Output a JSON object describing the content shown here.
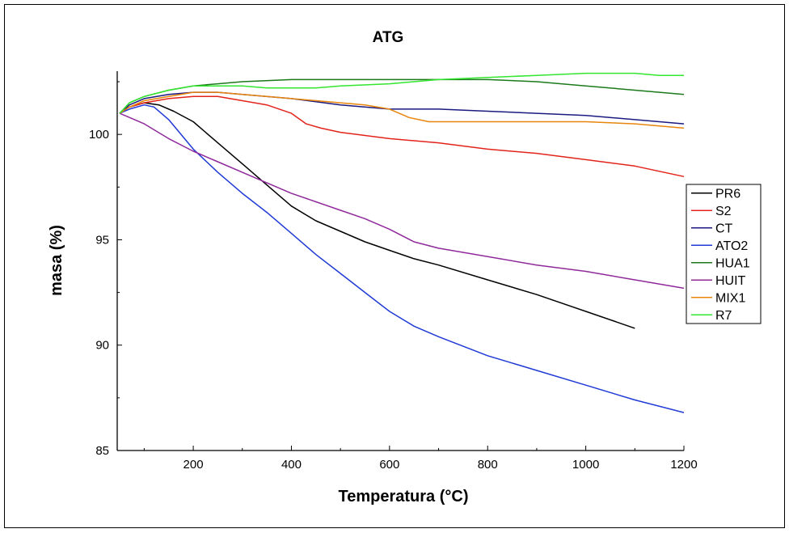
{
  "chart_data": {
    "type": "line",
    "title": "ATG",
    "xlabel": "Temperatura (°C)",
    "ylabel": "masa (%)",
    "xlim": [
      45,
      1200
    ],
    "ylim": [
      85,
      103
    ],
    "xticks": [
      200,
      400,
      600,
      800,
      1000,
      1200
    ],
    "yticks": [
      85,
      90,
      95,
      100
    ],
    "xtick_labels": [
      "200",
      "400",
      "600",
      "800",
      "1000",
      "1200"
    ],
    "ytick_labels": [
      "85",
      "90",
      "95",
      "100"
    ],
    "grid": false,
    "legend_position": "right",
    "series": [
      {
        "name": "PR6",
        "color": "#000000",
        "x": [
          50,
          70,
          100,
          130,
          160,
          200,
          250,
          300,
          350,
          400,
          450,
          500,
          550,
          600,
          650,
          700,
          800,
          900,
          1000,
          1100
        ],
        "y": [
          101.0,
          101.3,
          101.5,
          101.4,
          101.1,
          100.6,
          99.6,
          98.6,
          97.6,
          96.6,
          95.9,
          95.4,
          94.9,
          94.5,
          94.1,
          93.8,
          93.1,
          92.4,
          91.6,
          90.8
        ]
      },
      {
        "name": "S2",
        "color": "#e3241b",
        "x": [
          50,
          70,
          100,
          150,
          200,
          250,
          300,
          350,
          400,
          430,
          460,
          500,
          600,
          700,
          800,
          900,
          1000,
          1100,
          1200
        ],
        "y": [
          101.0,
          101.3,
          101.5,
          101.7,
          101.8,
          101.8,
          101.6,
          101.4,
          101.0,
          100.5,
          100.3,
          100.1,
          99.8,
          99.6,
          99.3,
          99.1,
          98.8,
          98.5,
          98.0
        ]
      },
      {
        "name": "CT",
        "color": "#1a1a80",
        "x": [
          50,
          70,
          100,
          150,
          200,
          250,
          300,
          400,
          500,
          600,
          700,
          800,
          900,
          1000,
          1100,
          1200
        ],
        "y": [
          101.0,
          101.4,
          101.7,
          101.9,
          102.0,
          102.0,
          101.9,
          101.7,
          101.4,
          101.2,
          101.2,
          101.1,
          101.0,
          100.9,
          100.7,
          100.5
        ]
      },
      {
        "name": "ATO2",
        "color": "#1f3ad6",
        "x": [
          50,
          70,
          100,
          120,
          150,
          200,
          250,
          300,
          350,
          400,
          450,
          500,
          550,
          600,
          650,
          700,
          800,
          900,
          1000,
          1100,
          1200
        ],
        "y": [
          101.0,
          101.2,
          101.4,
          101.3,
          100.7,
          99.3,
          98.2,
          97.2,
          96.3,
          95.3,
          94.3,
          93.4,
          92.5,
          91.6,
          90.9,
          90.4,
          89.5,
          88.8,
          88.1,
          87.4,
          86.8
        ]
      },
      {
        "name": "HUA1",
        "color": "#1b7a1b",
        "x": [
          50,
          70,
          100,
          150,
          200,
          250,
          300,
          400,
          500,
          600,
          700,
          800,
          900,
          1000,
          1100,
          1200
        ],
        "y": [
          101.0,
          101.5,
          101.8,
          102.1,
          102.3,
          102.4,
          102.5,
          102.6,
          102.6,
          102.6,
          102.6,
          102.6,
          102.5,
          102.3,
          102.1,
          101.9
        ]
      },
      {
        "name": "HUIT",
        "color": "#8f2a9a",
        "x": [
          50,
          100,
          150,
          200,
          250,
          300,
          350,
          400,
          450,
          500,
          550,
          600,
          650,
          700,
          800,
          900,
          1000,
          1100,
          1200
        ],
        "y": [
          101.0,
          100.5,
          99.8,
          99.2,
          98.7,
          98.2,
          97.7,
          97.2,
          96.8,
          96.4,
          96.0,
          95.5,
          94.9,
          94.6,
          94.2,
          93.8,
          93.5,
          93.1,
          92.7
        ]
      },
      {
        "name": "MIX1",
        "color": "#e8850c",
        "x": [
          50,
          70,
          100,
          150,
          200,
          250,
          300,
          350,
          400,
          450,
          500,
          550,
          600,
          640,
          680,
          700,
          800,
          860,
          900,
          1000,
          1100,
          1150,
          1200
        ],
        "y": [
          101.0,
          101.3,
          101.6,
          101.8,
          102.0,
          102.0,
          101.9,
          101.8,
          101.7,
          101.6,
          101.5,
          101.4,
          101.2,
          100.8,
          100.6,
          100.6,
          100.6,
          100.6,
          100.6,
          100.6,
          100.5,
          100.4,
          100.3
        ]
      },
      {
        "name": "R7",
        "color": "#33e62e",
        "x": [
          50,
          70,
          100,
          150,
          200,
          250,
          300,
          350,
          400,
          450,
          500,
          600,
          700,
          800,
          900,
          1000,
          1100,
          1150,
          1200
        ],
        "y": [
          101.0,
          101.5,
          101.8,
          102.1,
          102.3,
          102.3,
          102.3,
          102.2,
          102.2,
          102.2,
          102.3,
          102.4,
          102.6,
          102.7,
          102.8,
          102.9,
          102.9,
          102.8,
          102.8
        ]
      }
    ]
  }
}
